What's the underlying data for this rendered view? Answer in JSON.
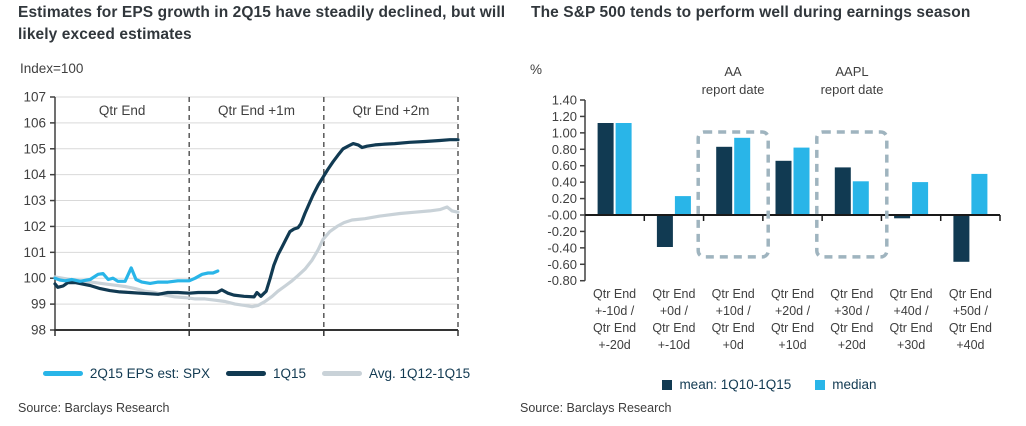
{
  "left_panel": {
    "title": "Estimates for EPS growth in 2Q15 have steadily declined, but will likely exceed estimates",
    "unit_label": "Index=100",
    "source": "Source: Barclays Research"
  },
  "right_panel": {
    "title": "The S&P 500 tends to perform well during earnings season",
    "unit_label": "%",
    "source": "Source: Barclays Research"
  },
  "colors": {
    "navy": "#113a52",
    "light_blue": "#29b5e8",
    "gray_line": "#c9d2d8",
    "grid": "#d9d9d9",
    "axis": "#404040",
    "axis_dark": "#1a1a1a",
    "dashed_separator": "#595959",
    "dashed_box": "#9fb4bf",
    "text": "#404040",
    "legend_text": "#123a52",
    "title_text": "#31373c"
  },
  "chart_data": [
    {
      "type": "line",
      "title": "Estimates for EPS growth in 2Q15 have steadily declined, but will likely exceed estimates",
      "xlabel": "",
      "ylabel": "Index=100",
      "ylim": [
        98,
        107
      ],
      "yticks": [
        98,
        99,
        100,
        101,
        102,
        103,
        104,
        105,
        106,
        107
      ],
      "grid": "horizontal gridlines on",
      "legend_position": "bottom",
      "x_unit": "percent of 3-month window from quarter end",
      "sections": [
        {
          "label": "Qtr End",
          "start_frac": 0,
          "end_frac": 0.333
        },
        {
          "label": "Qtr End +1m",
          "start_frac": 0.333,
          "end_frac": 0.667
        },
        {
          "label": "Qtr End +2m",
          "start_frac": 0.667,
          "end_frac": 1.0
        }
      ],
      "series": [
        {
          "name": "2Q15 EPS est: SPX",
          "color": "#29b5e8",
          "points": [
            [
              0,
              100.0
            ],
            [
              1.2,
              99.93
            ],
            [
              2.5,
              99.9
            ],
            [
              4.2,
              99.95
            ],
            [
              6.2,
              99.88
            ],
            [
              8.7,
              99.95
            ],
            [
              10.7,
              100.15
            ],
            [
              11.9,
              100.18
            ],
            [
              13.2,
              99.95
            ],
            [
              14.4,
              100.0
            ],
            [
              15.6,
              99.88
            ],
            [
              17.4,
              99.88
            ],
            [
              18.9,
              100.4
            ],
            [
              20.1,
              99.95
            ],
            [
              21.6,
              99.85
            ],
            [
              23.6,
              99.8
            ],
            [
              25.6,
              99.85
            ],
            [
              28,
              99.85
            ],
            [
              30.5,
              99.9
            ],
            [
              33.3,
              99.9
            ],
            [
              34.8,
              100.0
            ],
            [
              36.5,
              100.15
            ],
            [
              38,
              100.2
            ],
            [
              39.2,
              100.2
            ],
            [
              40.4,
              100.28
            ]
          ]
        },
        {
          "name": "1Q15",
          "color": "#113a52",
          "points": [
            [
              0,
              99.78
            ],
            [
              0.7,
              99.65
            ],
            [
              2,
              99.7
            ],
            [
              3.2,
              99.83
            ],
            [
              5,
              99.83
            ],
            [
              6.7,
              99.78
            ],
            [
              8.7,
              99.72
            ],
            [
              11.2,
              99.6
            ],
            [
              13.6,
              99.52
            ],
            [
              16.1,
              99.47
            ],
            [
              18.6,
              99.45
            ],
            [
              21.1,
              99.42
            ],
            [
              23.6,
              99.4
            ],
            [
              25.6,
              99.38
            ],
            [
              28,
              99.45
            ],
            [
              30.5,
              99.45
            ],
            [
              33.3,
              99.42
            ],
            [
              35.5,
              99.45
            ],
            [
              38,
              99.45
            ],
            [
              40.2,
              99.45
            ],
            [
              41.4,
              99.55
            ],
            [
              42.9,
              99.42
            ],
            [
              44.4,
              99.35
            ],
            [
              46.9,
              99.3
            ],
            [
              49.4,
              99.28
            ],
            [
              50.1,
              99.45
            ],
            [
              51.1,
              99.3
            ],
            [
              52.4,
              99.5
            ],
            [
              53.4,
              100.0
            ],
            [
              54.3,
              100.5
            ],
            [
              55.3,
              100.9
            ],
            [
              56.3,
              101.2
            ],
            [
              57.3,
              101.5
            ],
            [
              58.3,
              101.8
            ],
            [
              59.3,
              101.9
            ],
            [
              60.3,
              101.95
            ],
            [
              61,
              102.1
            ],
            [
              62,
              102.5
            ],
            [
              63,
              102.85
            ],
            [
              64,
              103.2
            ],
            [
              65.3,
              103.6
            ],
            [
              66.5,
              103.9
            ],
            [
              67.7,
              104.2
            ],
            [
              69,
              104.5
            ],
            [
              70.2,
              104.75
            ],
            [
              71.5,
              105.0
            ],
            [
              72.7,
              105.1
            ],
            [
              74,
              105.2
            ],
            [
              75.2,
              105.15
            ],
            [
              76.2,
              105.05
            ],
            [
              77.4,
              105.1
            ],
            [
              79.4,
              105.15
            ],
            [
              81.9,
              105.18
            ],
            [
              84.3,
              105.2
            ],
            [
              88,
              105.25
            ],
            [
              91.8,
              105.28
            ],
            [
              95.5,
              105.32
            ],
            [
              98,
              105.35
            ],
            [
              100,
              105.35
            ]
          ]
        },
        {
          "name": "Avg. 1Q12-1Q15",
          "color": "#c9d2d8",
          "points": [
            [
              0,
              100.05
            ],
            [
              3.7,
              99.95
            ],
            [
              7.4,
              99.88
            ],
            [
              9.9,
              99.83
            ],
            [
              12.4,
              99.78
            ],
            [
              14.9,
              99.73
            ],
            [
              17.4,
              99.68
            ],
            [
              19.9,
              99.6
            ],
            [
              22.3,
              99.5
            ],
            [
              24.8,
              99.45
            ],
            [
              27.3,
              99.35
            ],
            [
              29.8,
              99.28
            ],
            [
              32.3,
              99.25
            ],
            [
              34.8,
              99.2
            ],
            [
              37.2,
              99.2
            ],
            [
              39.7,
              99.15
            ],
            [
              42.2,
              99.1
            ],
            [
              44.7,
              99.0
            ],
            [
              47.1,
              98.95
            ],
            [
              48.9,
              98.9
            ],
            [
              50.4,
              98.95
            ],
            [
              52.1,
              99.1
            ],
            [
              53.9,
              99.3
            ],
            [
              55.3,
              99.5
            ],
            [
              57.1,
              99.7
            ],
            [
              58.8,
              99.9
            ],
            [
              60.3,
              100.1
            ],
            [
              62,
              100.35
            ],
            [
              63.8,
              100.7
            ],
            [
              65.3,
              101.1
            ],
            [
              66.5,
              101.5
            ],
            [
              68.2,
              101.8
            ],
            [
              70,
              102.0
            ],
            [
              71.7,
              102.15
            ],
            [
              73.7,
              102.25
            ],
            [
              76.9,
              102.3
            ],
            [
              80.6,
              102.4
            ],
            [
              85.6,
              102.5
            ],
            [
              89.3,
              102.55
            ],
            [
              93,
              102.6
            ],
            [
              95.5,
              102.65
            ],
            [
              97.3,
              102.75
            ],
            [
              98.5,
              102.6
            ],
            [
              100,
              102.55
            ]
          ]
        }
      ]
    },
    {
      "type": "bar",
      "title": "The S&P 500 tends to perform well during earnings season",
      "xlabel": "",
      "ylabel": "%",
      "ylim": [
        -0.8,
        1.4
      ],
      "ytick_step": 0.2,
      "grid": "off",
      "legend_position": "bottom",
      "categories": [
        [
          "Qtr End",
          "+-10d /",
          "Qtr End",
          "+-20d"
        ],
        [
          "Qtr End",
          "+0d /",
          "Qtr End",
          "+-10d"
        ],
        [
          "Qtr End",
          "+10d /",
          "Qtr End",
          "+0d"
        ],
        [
          "Qtr End",
          "+20d /",
          "Qtr End",
          "+10d"
        ],
        [
          "Qtr End",
          "+30d /",
          "Qtr End",
          "+20d"
        ],
        [
          "Qtr End",
          "+40d /",
          "Qtr End",
          "+30d"
        ],
        [
          "Qtr End",
          "+50d /",
          "Qtr End",
          "+40d"
        ]
      ],
      "series": [
        {
          "name": "mean: 1Q10-1Q15",
          "color": "#113a52",
          "values": [
            1.12,
            -0.39,
            0.83,
            0.66,
            0.58,
            -0.04,
            -0.57
          ]
        },
        {
          "name": "median",
          "color": "#29b5e8",
          "values": [
            1.12,
            0.23,
            0.94,
            0.82,
            0.41,
            0.4,
            0.5
          ]
        }
      ],
      "annotations": [
        {
          "label_lines": [
            "AA",
            "report date"
          ],
          "category_index": 2,
          "box": {
            "top": 1.01,
            "bottom": -0.51
          }
        },
        {
          "label_lines": [
            "AAPL",
            "report date"
          ],
          "category_index": 4,
          "box": {
            "top": 1.01,
            "bottom": -0.51
          }
        }
      ]
    }
  ]
}
